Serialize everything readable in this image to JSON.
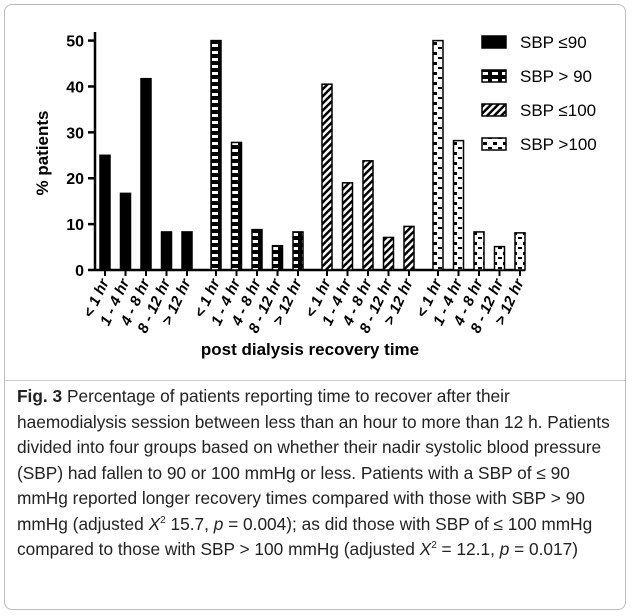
{
  "chart_data": {
    "type": "bar",
    "categories": [
      "< 1 hr",
      "1 - 4 hr",
      "4 - 8 hr",
      "8 - 12 hr",
      "> 12 hr"
    ],
    "series": [
      {
        "name": "SBP ≤90",
        "color": "#000000",
        "pattern": "solid",
        "values": [
          25,
          16.7,
          41.7,
          8.3,
          8.3
        ]
      },
      {
        "name": "SBP > 90",
        "color": "#000000",
        "pattern": "dash",
        "values": [
          50,
          27.8,
          8.8,
          5.3,
          8.3
        ]
      },
      {
        "name": "SBP ≤100",
        "color": "#000000",
        "pattern": "hatch",
        "values": [
          40.5,
          19,
          23.8,
          7.1,
          9.5
        ]
      },
      {
        "name": "SBP >100",
        "color": "#000000",
        "pattern": "dots",
        "values": [
          50,
          28.2,
          8.3,
          5.1,
          8.1
        ]
      }
    ],
    "ylim": [
      0,
      51
    ],
    "yticks": [
      0,
      10,
      20,
      30,
      40,
      50
    ],
    "y_label": "% patients",
    "x_label": "post dialysis recovery time",
    "legend": "top-right"
  },
  "caption": {
    "label": "Fig. 3",
    "parts": [
      " Percentage of patients reporting time to recover after their haemodialysis session between less than an hour to more than 12 h. Patients divided into four groups based on whether their nadir systolic blood pressure (SBP) had fallen to 90 or 100 mmHg or less. Patients with a SBP of ≤ 90 mmHg reported longer recovery times compared with those with SBP > 90 mmHg (adjusted ",
      "X",
      "2",
      " 15.7, ",
      "p",
      " = 0.004); as did those with SBP of ≤ 100 mmHg compared to those with SBP > 100 mmHg (adjusted ",
      "X",
      "2",
      " = 12.1, ",
      "p",
      " = 0.017)"
    ]
  }
}
